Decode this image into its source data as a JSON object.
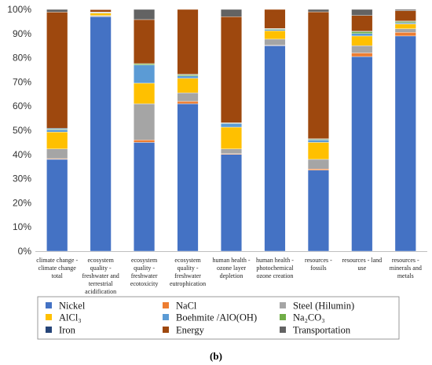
{
  "chart_data": {
    "type": "bar",
    "stacked": true,
    "percent": true,
    "ylim": [
      0,
      100
    ],
    "yticks": [
      "0%",
      "10%",
      "20%",
      "30%",
      "40%",
      "50%",
      "60%",
      "70%",
      "80%",
      "90%",
      "100%"
    ],
    "grid": false,
    "legend_position": "bottom",
    "caption": "(b)",
    "categories": [
      [
        "climate change -",
        "climate change",
        "total"
      ],
      [
        "ecosystem",
        "quality -",
        "freshwater and",
        "terrestrial",
        "acidification"
      ],
      [
        "ecosystem",
        "quality -",
        "freshwater",
        "ecotoxicity"
      ],
      [
        "ecosystem",
        "quality -",
        "freshwater",
        "eutrophication"
      ],
      [
        "human health -",
        "ozone layer",
        "depletion"
      ],
      [
        "human health -",
        "photochemical",
        "ozone creation"
      ],
      [
        "resources -",
        "fossils"
      ],
      [
        "resources - land",
        "use"
      ],
      [
        "resources -",
        "minerals and",
        "metals"
      ]
    ],
    "series": [
      {
        "name": "Nickel",
        "color": "#4472c4",
        "values": [
          38,
          97,
          45,
          61,
          40,
          85,
          33.5,
          80.5,
          89
        ]
      },
      {
        "name": "NaCl",
        "color": "#ed7d31",
        "values": [
          0.3,
          0.2,
          1,
          1,
          0.3,
          0.2,
          0.5,
          1.5,
          1.5
        ]
      },
      {
        "name": "Steel (Hilumin)",
        "color": "#a5a5a5",
        "values": [
          4,
          0.3,
          15,
          3.5,
          2,
          2.5,
          4,
          3,
          1.5
        ]
      },
      {
        "name": "AlCl₃",
        "color": "#ffc000",
        "values": [
          7,
          1,
          8.5,
          6,
          9,
          3.5,
          7,
          4,
          2
        ]
      },
      {
        "name": "Boehmite /AlO(OH)",
        "color": "#5b9bd5",
        "values": [
          1,
          0.2,
          7.5,
          1,
          1.5,
          0.5,
          1,
          1,
          0.5
        ]
      },
      {
        "name": "Na₂CO₃",
        "color": "#70ad47",
        "values": [
          0.3,
          0.1,
          0.5,
          0.5,
          0.2,
          0.3,
          0.3,
          0.8,
          0.5
        ]
      },
      {
        "name": "Iron",
        "color": "#264478",
        "values": [
          0.3,
          0.1,
          0.1,
          0.2,
          0.1,
          0.1,
          0.2,
          0.2,
          0.2
        ]
      },
      {
        "name": "Energy",
        "color": "#9e480e",
        "values": [
          48,
          1,
          18.2,
          26.8,
          43.9,
          7.9,
          52.5,
          6.5,
          4.3
        ]
      },
      {
        "name": "Transportation",
        "color": "#636363",
        "values": [
          1.1,
          0.1,
          4.2,
          0,
          3,
          0,
          1,
          2.5,
          0.5
        ]
      }
    ]
  }
}
